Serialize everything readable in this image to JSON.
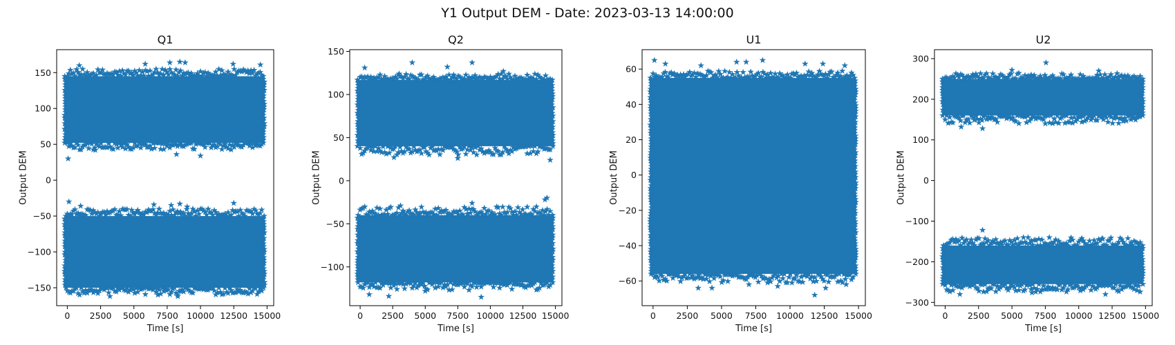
{
  "figure": {
    "title": "Y1 Output DEM - Date: 2023-03-13 14:00:00"
  },
  "style": {
    "marker_color": "#1f77b4",
    "axis_color": "#000000",
    "marker": "star"
  },
  "chart_data": [
    {
      "type": "scatter",
      "title": "Q1",
      "xlabel": "Time [s]",
      "ylabel": "Output DEM",
      "xlim": [
        -800,
        15500
      ],
      "ylim": [
        -175,
        182
      ],
      "xticks": [
        0,
        2500,
        5000,
        7500,
        10000,
        12500,
        15000
      ],
      "yticks": [
        -150,
        -100,
        -50,
        0,
        50,
        100,
        150
      ],
      "x_range": [
        0,
        14600
      ],
      "grid": false,
      "series": [
        {
          "bands": [
            {
              "dense_low": 52,
              "dense_high": 145,
              "edge_low": 42,
              "edge_high": 155,
              "outliers": [
                [
                  60,
                  30
                ],
                [
                  2100,
                  42
                ],
                [
                  8200,
                  36
                ],
                [
                  10000,
                  34
                ],
                [
                  900,
                  160
                ],
                [
                  5850,
                  162
                ],
                [
                  7700,
                  164
                ],
                [
                  8450,
                  165
                ],
                [
                  8850,
                  164
                ],
                [
                  12450,
                  162
                ],
                [
                  14500,
                  161
                ]
              ]
            },
            {
              "dense_low": -150,
              "dense_high": -50,
              "edge_low": -160,
              "edge_high": -40,
              "outliers": [
                [
                  120,
                  -30
                ],
                [
                  1000,
                  -36
                ],
                [
                  6500,
                  -34
                ],
                [
                  7800,
                  -35
                ],
                [
                  8450,
                  -33
                ],
                [
                  9000,
                  -37
                ],
                [
                  12500,
                  -32
                ],
                [
                  3200,
                  -162
                ],
                [
                  8300,
                  -162
                ],
                [
                  6800,
                  -160
                ]
              ]
            }
          ]
        }
      ]
    },
    {
      "type": "scatter",
      "title": "Q2",
      "xlabel": "Time [s]",
      "ylabel": "Output DEM",
      "xlim": [
        -800,
        15500
      ],
      "ylim": [
        -145,
        152
      ],
      "xticks": [
        0,
        2500,
        5000,
        7500,
        10000,
        12500,
        15000
      ],
      "yticks": [
        -100,
        -50,
        0,
        50,
        100,
        150
      ],
      "x_range": [
        0,
        14600
      ],
      "grid": false,
      "series": [
        {
          "bands": [
            {
              "dense_low": 40,
              "dense_high": 117,
              "edge_low": 30,
              "edge_high": 124,
              "outliers": [
                [
                  350,
                  131
                ],
                [
                  4000,
                  137
                ],
                [
                  6700,
                  132
                ],
                [
                  8600,
                  137
                ],
                [
                  3000,
                  124
                ],
                [
                  11000,
                  127
                ],
                [
                  14600,
                  24
                ],
                [
                  7500,
                  26
                ],
                [
                  2600,
                  27
                ]
              ]
            },
            {
              "dense_low": -118,
              "dense_high": -40,
              "edge_low": -127,
              "edge_high": -30,
              "outliers": [
                [
                  14200,
                  -22
                ],
                [
                  14350,
                  -20
                ],
                [
                  8600,
                  -26
                ],
                [
                  3100,
                  -29
                ],
                [
                  700,
                  -132
                ],
                [
                  2200,
                  -134
                ],
                [
                  9300,
                  -135
                ],
                [
                  5000,
                  -128
                ]
              ]
            }
          ]
        }
      ]
    },
    {
      "type": "scatter",
      "title": "U1",
      "xlabel": "Time [s]",
      "ylabel": "Output DEM",
      "xlim": [
        -800,
        15500
      ],
      "ylim": [
        -74,
        71
      ],
      "xticks": [
        0,
        2500,
        5000,
        7500,
        10000,
        12500,
        15000
      ],
      "yticks": [
        -60,
        -40,
        -20,
        0,
        20,
        40,
        60
      ],
      "x_range": [
        0,
        14600
      ],
      "grid": false,
      "series": [
        {
          "bands": [
            {
              "dense_low": -56,
              "dense_high": 55,
              "edge_low": -61,
              "edge_high": 59,
              "outliers": [
                [
                  100,
                  65
                ],
                [
                  900,
                  63
                ],
                [
                  3500,
                  62
                ],
                [
                  6100,
                  64
                ],
                [
                  6800,
                  64
                ],
                [
                  8000,
                  65
                ],
                [
                  11100,
                  63
                ],
                [
                  12400,
                  63
                ],
                [
                  14000,
                  62
                ],
                [
                  11800,
                  -68
                ],
                [
                  3300,
                  -64
                ],
                [
                  4300,
                  -64
                ],
                [
                  9100,
                  -63
                ],
                [
                  7000,
                  -62
                ],
                [
                  12600,
                  -64
                ],
                [
                  14100,
                  -62
                ]
              ]
            }
          ]
        }
      ]
    },
    {
      "type": "scatter",
      "title": "U2",
      "xlabel": "Time [s]",
      "ylabel": "Output DEM",
      "xlim": [
        -800,
        15500
      ],
      "ylim": [
        -308,
        322
      ],
      "xticks": [
        0,
        2500,
        5000,
        7500,
        10000,
        12500,
        15000
      ],
      "yticks": [
        -300,
        -200,
        -100,
        0,
        100,
        200,
        300
      ],
      "x_range": [
        0,
        14600
      ],
      "grid": false,
      "series": [
        {
          "bands": [
            {
              "dense_low": 160,
              "dense_high": 250,
              "edge_low": 140,
              "edge_high": 265,
              "outliers": [
                [
                  7550,
                  290
                ],
                [
                  2800,
                  128
                ],
                [
                  1200,
                  132
                ],
                [
                  7500,
                  140
                ],
                [
                  11500,
                  270
                ],
                [
                  5000,
                  272
                ]
              ]
            },
            {
              "dense_low": -255,
              "dense_high": -160,
              "edge_low": -275,
              "edge_high": -140,
              "outliers": [
                [
                  2800,
                  -122
                ],
                [
                  7800,
                  -140
                ],
                [
                  11800,
                  -143
                ],
                [
                  1100,
                  -280
                ],
                [
                  12000,
                  -280
                ],
                [
                  6500,
                  -276
                ]
              ]
            }
          ]
        }
      ]
    }
  ]
}
